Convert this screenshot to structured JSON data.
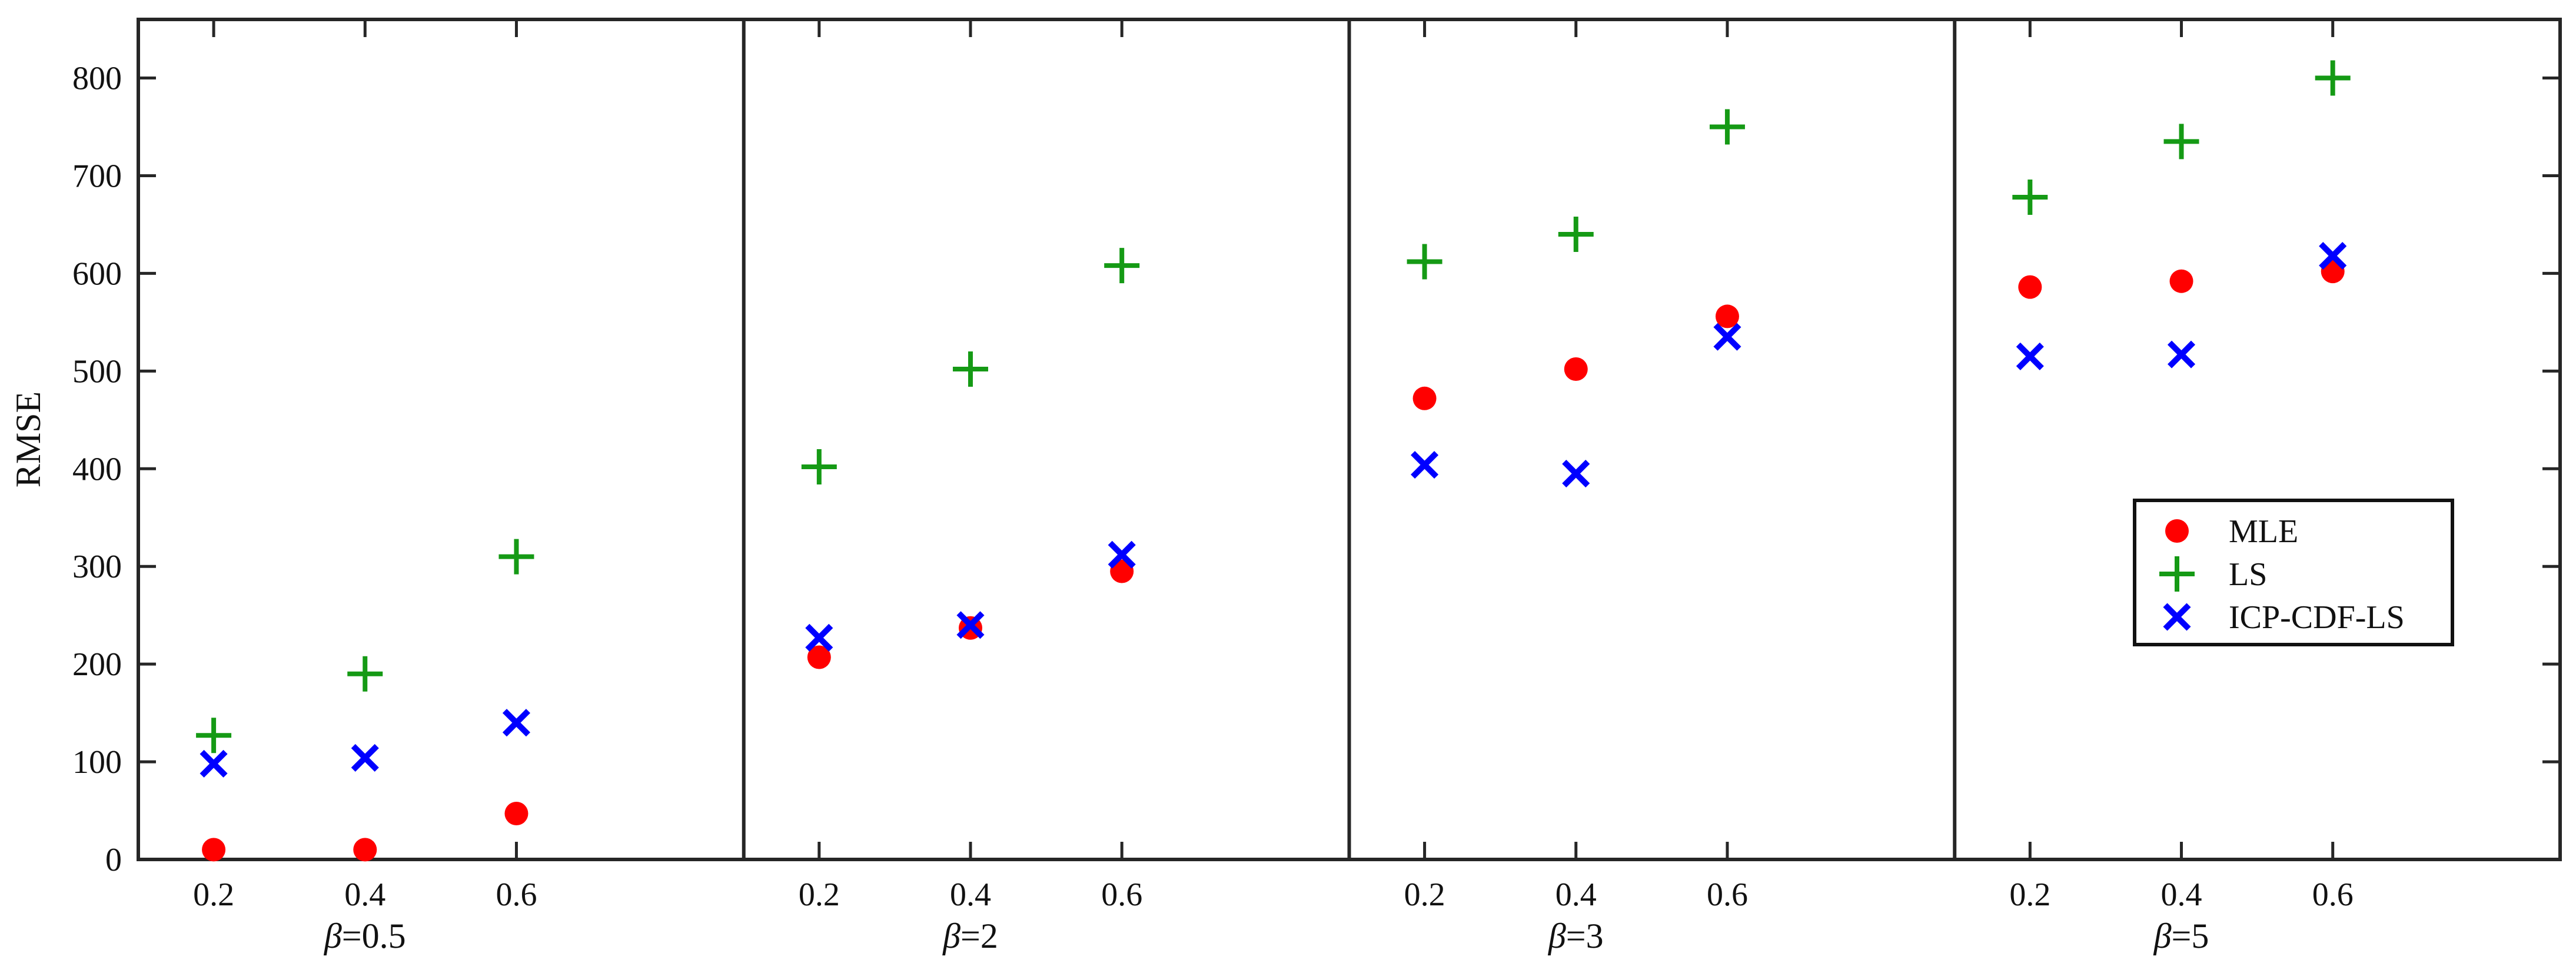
{
  "chart_data": {
    "type": "scatter",
    "title": "",
    "ylabel": "RMSE",
    "ylim": [
      0,
      860
    ],
    "yticks": [
      0,
      100,
      200,
      300,
      400,
      500,
      600,
      700,
      800
    ],
    "grid": false,
    "legend_position": "right",
    "panels": [
      {
        "label_symbol": "β",
        "label_value": "=0.5",
        "x": [
          "0.2",
          "0.4",
          "0.6"
        ]
      },
      {
        "label_symbol": "β",
        "label_value": "=2",
        "x": [
          "0.2",
          "0.4",
          "0.6"
        ]
      },
      {
        "label_symbol": "β",
        "label_value": "=3",
        "x": [
          "0.2",
          "0.4",
          "0.6"
        ]
      },
      {
        "label_symbol": "β",
        "label_value": "=5",
        "x": [
          "0.2",
          "0.4",
          "0.6"
        ]
      }
    ],
    "series": [
      {
        "name": "MLE",
        "marker": "circle",
        "color": "#ff0000",
        "values": [
          [
            10,
            10,
            47
          ],
          [
            207,
            237,
            295
          ],
          [
            472,
            502,
            556
          ],
          [
            586,
            592,
            602
          ]
        ]
      },
      {
        "name": "LS",
        "marker": "plus",
        "color": "#159a15",
        "values": [
          [
            127,
            190,
            310
          ],
          [
            402,
            502,
            608
          ],
          [
            612,
            640,
            750
          ],
          [
            678,
            735,
            800
          ]
        ]
      },
      {
        "name": "ICP-CDF-LS",
        "marker": "x",
        "color": "#0000ff",
        "values": [
          [
            98,
            104,
            140
          ],
          [
            227,
            240,
            312
          ],
          [
            404,
            395,
            535
          ],
          [
            515,
            517,
            618
          ]
        ]
      }
    ]
  }
}
